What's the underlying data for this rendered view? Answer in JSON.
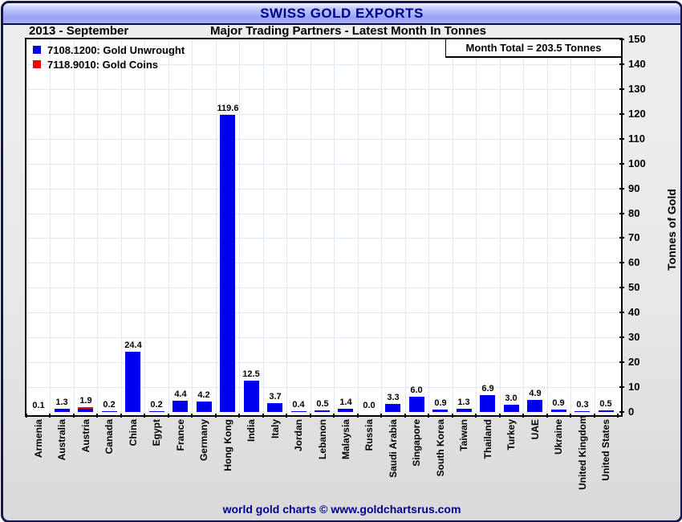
{
  "header": {
    "title": "SWISS GOLD EXPORTS"
  },
  "subheader": {
    "period": "2013 - September",
    "title": "Major Trading Partners - Latest Month In Tonnes"
  },
  "plot": {
    "month_total": "Month Total = 203.5 Tonnes"
  },
  "legend": {
    "items": [
      {
        "label": "7108.1200: Gold Unwrought",
        "color": "#0000f0"
      },
      {
        "label": "7118.9010: Gold Coins",
        "color": "#ff0000"
      }
    ]
  },
  "footer": {
    "credit": "world gold charts © www.goldchartsrus.com"
  },
  "colors": {
    "bar_unwrought": "#0000f0",
    "bar_coins": "#ff0000",
    "title_navy": "#00008b",
    "gridline": "#dfe9f6",
    "titlebar_gradient_top": "#f0f2ff",
    "titlebar_gradient_bottom": "#9aa3f5",
    "frame_border": "#16164e",
    "chart_background": "#e7e7e7",
    "plot_background": "#ffffff"
  },
  "chart_data": {
    "type": "bar",
    "title": "SWISS GOLD EXPORTS",
    "period": "2013 - September",
    "subtitle": "Major Trading Partners - Latest Month In Tonnes",
    "month_total_tonnes": 203.5,
    "ylabel": "Tonnes of Gold",
    "ylim": [
      0,
      150
    ],
    "ytick_step": 10,
    "grid": true,
    "legend_position": "top-left",
    "categories": [
      "Armenia",
      "Australia",
      "Austria",
      "Canada",
      "China",
      "Egypt",
      "France",
      "Germany",
      "Hong Kong",
      "India",
      "Italy",
      "Jordan",
      "Lebanon",
      "Malaysia",
      "Russia",
      "Saudi Arabia",
      "Singapore",
      "South Korea",
      "Taiwan",
      "Thailand",
      "Turkey",
      "UAE",
      "Ukraine",
      "United Kingdom",
      "United States"
    ],
    "series": [
      {
        "name": "7108.1200: Gold Unwrought",
        "color": "#0000f0",
        "values": [
          0.1,
          1.3,
          1.3,
          0.2,
          24.4,
          0.2,
          4.4,
          4.2,
          119.6,
          12.5,
          3.7,
          0.4,
          0.5,
          1.4,
          0.0,
          3.3,
          6.0,
          0.9,
          1.3,
          6.9,
          3.0,
          4.9,
          0.9,
          0.3,
          0.5
        ]
      },
      {
        "name": "7118.9010: Gold Coins",
        "color": "#ff0000",
        "values": [
          0,
          0,
          0.6,
          0,
          0,
          0,
          0,
          0,
          0,
          0,
          0,
          0,
          0,
          0,
          0,
          0,
          0,
          0,
          0,
          0,
          0,
          0,
          0,
          0,
          0
        ]
      }
    ],
    "bar_labels": [
      "0.1",
      "1.3",
      "1.9",
      "0.2",
      "24.4",
      "0.2",
      "4.4",
      "4.2",
      "119.6",
      "12.5",
      "3.7",
      "0.4",
      "0.5",
      "1.4",
      "0.0",
      "3.3",
      "6.0",
      "0.9",
      "1.3",
      "6.9",
      "3.0",
      "4.9",
      "0.9",
      "0.3",
      "0.5"
    ]
  }
}
